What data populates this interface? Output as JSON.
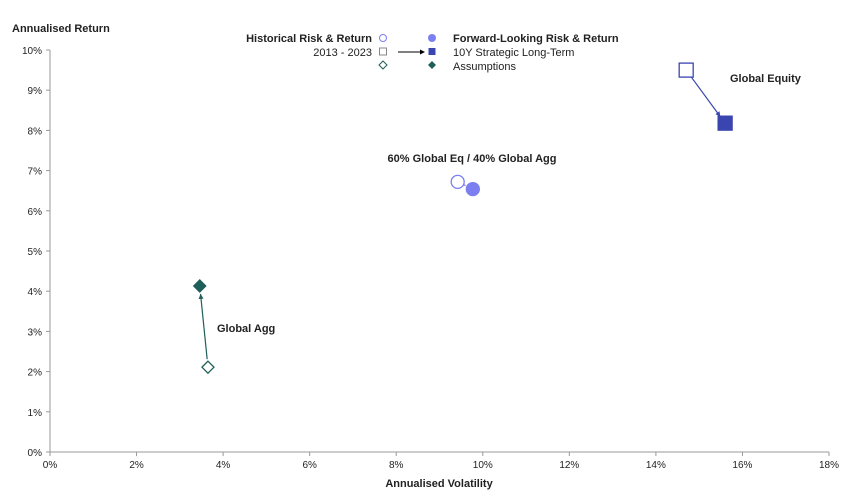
{
  "chart_data": {
    "type": "scatter",
    "xlabel": "Annualised Volatility",
    "ylabel": "Annualised Return",
    "xlim": [
      0,
      18
    ],
    "ylim": [
      0,
      10
    ],
    "xticks": [
      "0%",
      "2%",
      "4%",
      "6%",
      "8%",
      "10%",
      "12%",
      "14%",
      "16%",
      "18%"
    ],
    "yticks": [
      "0%",
      "1%",
      "2%",
      "3%",
      "4%",
      "5%",
      "6%",
      "7%",
      "8%",
      "9%",
      "10%"
    ],
    "legend": {
      "left_label_1": "Historical Risk & Return",
      "left_label_2": "2013 - 2023",
      "right_label_1": "Forward-Looking Risk & Return",
      "right_label_2": "10Y Strategic Long-Term",
      "right_label_3": "Assumptions"
    },
    "series": [
      {
        "name": "Global Equity",
        "marker": "square",
        "color": "#3b45b0",
        "historical": {
          "x": 14.7,
          "y": 9.5
        },
        "forward": {
          "x": 15.6,
          "y": 8.18
        }
      },
      {
        "name": "60% Global Eq / 40% Global Agg",
        "marker": "circle",
        "color": "#7b7ff0",
        "historical": {
          "x": 9.42,
          "y": 6.72
        },
        "forward": {
          "x": 9.77,
          "y": 6.54
        }
      },
      {
        "name": "Global Agg",
        "marker": "diamond",
        "color": "#1f5f5a",
        "historical": {
          "x": 3.65,
          "y": 2.11
        },
        "forward": {
          "x": 3.46,
          "y": 4.13
        }
      }
    ]
  }
}
